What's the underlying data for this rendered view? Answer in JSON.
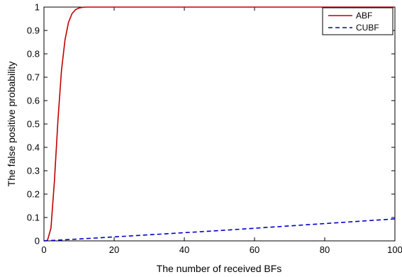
{
  "chart_data": {
    "type": "line",
    "xlabel": "The number of received BFs",
    "ylabel": "The false positive probability",
    "xlim": [
      0,
      100
    ],
    "ylim": [
      0,
      1
    ],
    "xticks": [
      0,
      20,
      40,
      60,
      80,
      100
    ],
    "yticks": [
      0,
      0.1,
      0.2,
      0.3,
      0.4,
      0.5,
      0.6,
      0.7,
      0.8,
      0.9,
      1
    ],
    "grid": false,
    "legend_position": "top-right",
    "series": [
      {
        "name": "ABF",
        "color": "#c00000",
        "dash": "solid",
        "x": [
          0,
          1,
          2,
          3,
          4,
          5,
          6,
          7,
          8,
          9,
          10,
          11,
          12,
          13,
          14,
          15,
          20,
          30,
          40,
          50,
          60,
          70,
          80,
          90,
          100
        ],
        "y": [
          0,
          0.002,
          0.055,
          0.26,
          0.52,
          0.73,
          0.86,
          0.935,
          0.972,
          0.989,
          0.996,
          0.999,
          1,
          1,
          1,
          1,
          1,
          1,
          1,
          1,
          1,
          1,
          1,
          1,
          1
        ]
      },
      {
        "name": "CUBF",
        "color": "#0000cc",
        "dash": "dashed",
        "x": [
          0,
          10,
          20,
          30,
          40,
          50,
          60,
          70,
          80,
          90,
          100
        ],
        "y": [
          0,
          0.008,
          0.017,
          0.026,
          0.035,
          0.044,
          0.054,
          0.064,
          0.074,
          0.084,
          0.094
        ]
      }
    ]
  }
}
